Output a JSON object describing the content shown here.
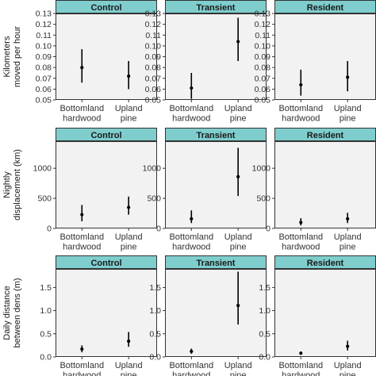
{
  "chart_data": [
    {
      "type": "scatter",
      "ylabel": [
        "Kilometers",
        "moved per hour"
      ],
      "ylim": [
        0.05,
        0.13
      ],
      "yticks": [
        "0.05",
        "0.06",
        "0.07",
        "0.08",
        "0.09",
        "0.10",
        "0.11",
        "0.12",
        "0.13"
      ],
      "categories": [
        [
          "Bottomland",
          "hardwood"
        ],
        [
          "Upland",
          "pine"
        ]
      ],
      "facets": [
        {
          "name": "Control",
          "points": [
            {
              "y": 0.08,
              "lo": 0.066,
              "hi": 0.097
            },
            {
              "y": 0.072,
              "lo": 0.06,
              "hi": 0.086
            }
          ]
        },
        {
          "name": "Transient",
          "points": [
            {
              "y": 0.061,
              "lo": 0.051,
              "hi": 0.075
            },
            {
              "y": 0.104,
              "lo": 0.086,
              "hi": 0.126
            }
          ]
        },
        {
          "name": "Resident",
          "points": [
            {
              "y": 0.064,
              "lo": 0.054,
              "hi": 0.078
            },
            {
              "y": 0.071,
              "lo": 0.058,
              "hi": 0.086
            }
          ]
        }
      ]
    },
    {
      "type": "scatter",
      "ylabel": [
        "Nightly",
        "displacement (km)"
      ],
      "ylim": [
        0,
        1450
      ],
      "yticks": [
        "0",
        "500",
        "1000"
      ],
      "categories": [
        [
          "Bottomland",
          "hardwood"
        ],
        [
          "Upland",
          "pine"
        ]
      ],
      "facets": [
        {
          "name": "Control",
          "points": [
            {
              "y": 230,
              "lo": 120,
              "hi": 390
            },
            {
              "y": 350,
              "lo": 230,
              "hi": 530
            }
          ]
        },
        {
          "name": "Transient",
          "points": [
            {
              "y": 160,
              "lo": 90,
              "hi": 300
            },
            {
              "y": 860,
              "lo": 540,
              "hi": 1340
            }
          ]
        },
        {
          "name": "Resident",
          "points": [
            {
              "y": 100,
              "lo": 50,
              "hi": 170
            },
            {
              "y": 160,
              "lo": 90,
              "hi": 260
            }
          ]
        }
      ]
    },
    {
      "type": "scatter",
      "ylabel": [
        "Daily distance",
        "between dens (m)"
      ],
      "ylim": [
        0,
        1.9
      ],
      "yticks": [
        "0.0",
        "0.5",
        "1.0",
        "1.5"
      ],
      "categories": [
        [
          "Bottomland",
          "hardwood"
        ],
        [
          "Upland",
          "pine"
        ]
      ],
      "facets": [
        {
          "name": "Control",
          "points": [
            {
              "y": 0.17,
              "lo": 0.1,
              "hi": 0.25
            },
            {
              "y": 0.34,
              "lo": 0.22,
              "hi": 0.54
            }
          ]
        },
        {
          "name": "Transient",
          "points": [
            {
              "y": 0.12,
              "lo": 0.07,
              "hi": 0.18
            },
            {
              "y": 1.11,
              "lo": 0.7,
              "hi": 1.84
            }
          ]
        },
        {
          "name": "Resident",
          "points": [
            {
              "y": 0.08,
              "lo": 0.05,
              "hi": 0.12
            },
            {
              "y": 0.23,
              "lo": 0.14,
              "hi": 0.35
            }
          ]
        }
      ]
    }
  ]
}
